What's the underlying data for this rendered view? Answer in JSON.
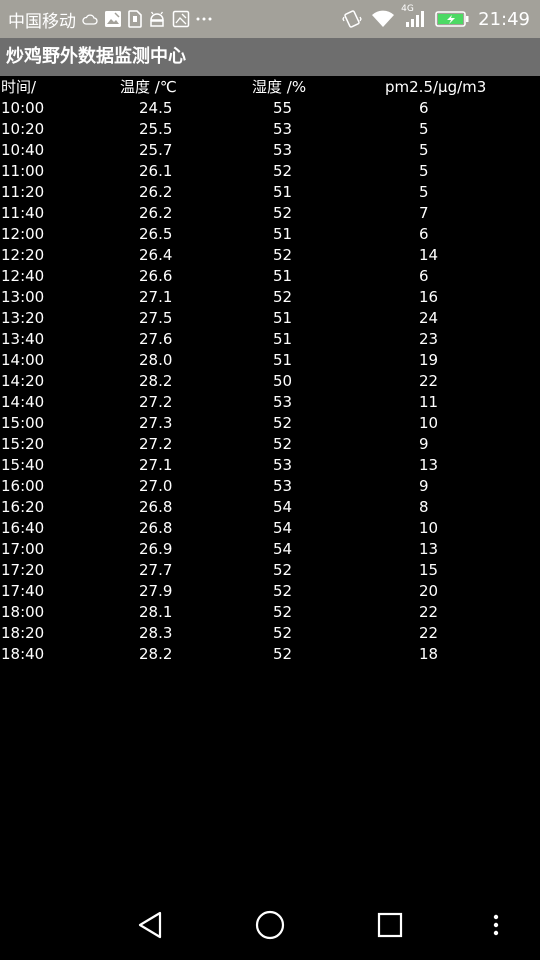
{
  "status_bar": {
    "carrier": "中国移动",
    "network_type": "4G",
    "time": "21:49"
  },
  "app": {
    "title": "炒鸡野外数据监测中心"
  },
  "table": {
    "headers": [
      "时间/",
      "温度 /℃",
      "湿度 /%",
      "pm2.5/μg/m3"
    ],
    "rows": [
      [
        "10:00",
        "24.5",
        "55",
        "6"
      ],
      [
        "10:20",
        "25.5",
        "53",
        "5"
      ],
      [
        "10:40",
        "25.7",
        "53",
        "5"
      ],
      [
        "11:00",
        "26.1",
        "52",
        "5"
      ],
      [
        "11:20",
        "26.2",
        "51",
        "5"
      ],
      [
        "11:40",
        "26.2",
        "52",
        "7"
      ],
      [
        "12:00",
        "26.5",
        "51",
        "6"
      ],
      [
        "12:20",
        "26.4",
        "52",
        "14"
      ],
      [
        "12:40",
        "26.6",
        "51",
        "6"
      ],
      [
        "13:00",
        "27.1",
        "52",
        "16"
      ],
      [
        "13:20",
        "27.5",
        "51",
        "24"
      ],
      [
        "13:40",
        "27.6",
        "51",
        "23"
      ],
      [
        "14:00",
        "28.0",
        "51",
        "19"
      ],
      [
        "14:20",
        "28.2",
        "50",
        "22"
      ],
      [
        "14:40",
        "27.2",
        "53",
        "11"
      ],
      [
        "15:00",
        "27.3",
        "52",
        "10"
      ],
      [
        "15:20",
        "27.2",
        "52",
        "9"
      ],
      [
        "15:40",
        "27.1",
        "53",
        "13"
      ],
      [
        "16:00",
        "27.0",
        "53",
        "9"
      ],
      [
        "16:20",
        "26.8",
        "54",
        "8"
      ],
      [
        "16:40",
        "26.8",
        "54",
        "10"
      ],
      [
        "17:00",
        "26.9",
        "54",
        "13"
      ],
      [
        "17:20",
        "27.7",
        "52",
        "15"
      ],
      [
        "17:40",
        "27.9",
        "52",
        "20"
      ],
      [
        "18:00",
        "28.1",
        "52",
        "22"
      ],
      [
        "18:20",
        "28.3",
        "52",
        "22"
      ],
      [
        "18:40",
        "28.2",
        "52",
        "18"
      ]
    ]
  },
  "colors": {
    "status_bar_bg": "#a3a19a",
    "title_bar_bg": "#6e6e6e",
    "background": "#000000",
    "text": "#ffffff"
  }
}
